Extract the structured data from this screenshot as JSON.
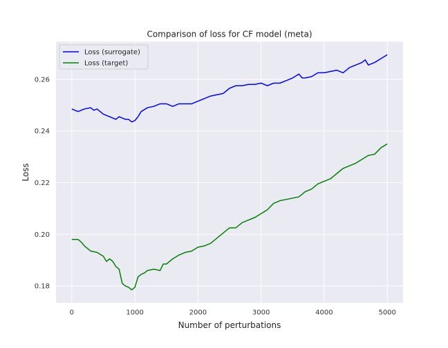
{
  "chart_data": {
    "type": "line",
    "title": "Comparison of loss for CF model (meta)",
    "xlabel": "Number of perturbations",
    "ylabel": "Loss",
    "xlim": [
      -250,
      5250
    ],
    "ylim": [
      0.1735,
      0.2745
    ],
    "xticks": [
      0,
      1000,
      2000,
      3000,
      4000,
      5000
    ],
    "yticks": [
      0.18,
      0.2,
      0.22,
      0.24,
      0.26
    ],
    "ytick_labels": [
      "0.18",
      "0.20",
      "0.22",
      "0.24",
      "0.26"
    ],
    "grid": true,
    "legend_position": "top-left",
    "background": "#eaeaf2",
    "series": [
      {
        "name": "Loss (surrogate)",
        "color": "#0000ff",
        "x": [
          0,
          100,
          200,
          300,
          350,
          400,
          500,
          600,
          700,
          750,
          800,
          850,
          900,
          950,
          1000,
          1050,
          1100,
          1200,
          1300,
          1400,
          1500,
          1600,
          1700,
          1800,
          1900,
          2000,
          2100,
          2200,
          2300,
          2400,
          2500,
          2600,
          2700,
          2800,
          2900,
          3000,
          3100,
          3200,
          3300,
          3400,
          3500,
          3600,
          3650,
          3700,
          3800,
          3900,
          4000,
          4100,
          4200,
          4300,
          4400,
          4500,
          4600,
          4650,
          4700,
          4750,
          4800,
          4900,
          5000
        ],
        "y": [
          0.2485,
          0.2475,
          0.2485,
          0.249,
          0.248,
          0.2485,
          0.2465,
          0.2455,
          0.2445,
          0.2455,
          0.245,
          0.2445,
          0.2445,
          0.2435,
          0.244,
          0.2455,
          0.2475,
          0.249,
          0.2495,
          0.2505,
          0.2505,
          0.2495,
          0.2505,
          0.2505,
          0.2505,
          0.2515,
          0.2525,
          0.2535,
          0.254,
          0.2545,
          0.2565,
          0.2575,
          0.2575,
          0.258,
          0.258,
          0.2585,
          0.2575,
          0.2585,
          0.2585,
          0.2595,
          0.2605,
          0.262,
          0.2605,
          0.2605,
          0.261,
          0.2625,
          0.2625,
          0.263,
          0.2635,
          0.2625,
          0.2645,
          0.2655,
          0.2665,
          0.2675,
          0.2655,
          0.266,
          0.2665,
          0.268,
          0.2695
        ]
      },
      {
        "name": "Loss (target)",
        "color": "#008000",
        "x": [
          0,
          100,
          150,
          200,
          300,
          400,
          500,
          550,
          600,
          650,
          700,
          750,
          800,
          850,
          900,
          950,
          1000,
          1050,
          1100,
          1150,
          1200,
          1300,
          1400,
          1450,
          1500,
          1600,
          1700,
          1800,
          1900,
          2000,
          2100,
          2200,
          2300,
          2400,
          2500,
          2600,
          2700,
          2800,
          2900,
          3000,
          3100,
          3200,
          3300,
          3400,
          3500,
          3600,
          3700,
          3800,
          3900,
          4000,
          4100,
          4200,
          4300,
          4400,
          4500,
          4600,
          4700,
          4800,
          4900,
          5000
        ],
        "y": [
          0.198,
          0.198,
          0.197,
          0.1955,
          0.1935,
          0.193,
          0.1915,
          0.1895,
          0.1905,
          0.1895,
          0.1875,
          0.1865,
          0.181,
          0.18,
          0.1795,
          0.1785,
          0.1795,
          0.1835,
          0.1845,
          0.185,
          0.186,
          0.1865,
          0.186,
          0.1885,
          0.1885,
          0.1905,
          0.192,
          0.193,
          0.1935,
          0.195,
          0.1955,
          0.1965,
          0.1985,
          0.2005,
          0.2025,
          0.2025,
          0.2045,
          0.2055,
          0.2065,
          0.208,
          0.2095,
          0.212,
          0.213,
          0.2135,
          0.214,
          0.2145,
          0.2165,
          0.2175,
          0.2195,
          0.2205,
          0.2215,
          0.2235,
          0.2255,
          0.2265,
          0.2275,
          0.229,
          0.2305,
          0.231,
          0.2335,
          0.235
        ]
      }
    ]
  }
}
